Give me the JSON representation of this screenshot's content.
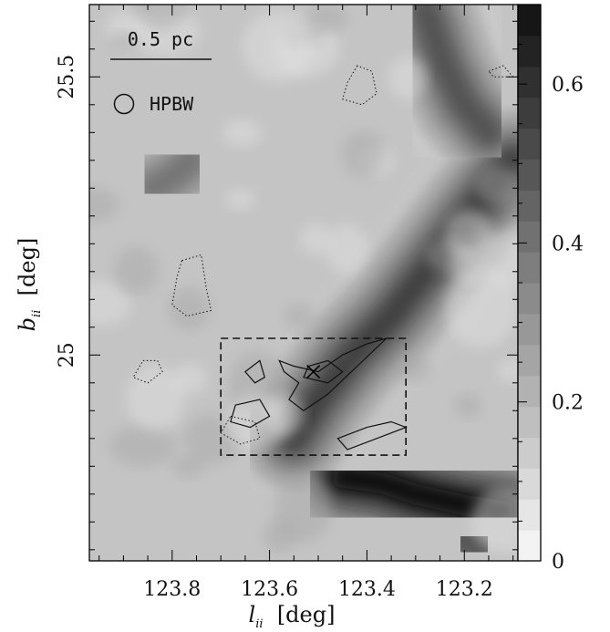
{
  "chart_data": {
    "type": "heatmap",
    "title": "",
    "xlabel": "l",
    "xlabel_sub": "ii",
    "xlabel_unit": "[deg]",
    "ylabel": "b",
    "ylabel_sub": "ii",
    "ylabel_unit": "[deg]",
    "xlim": [
      123.97,
      123.09
    ],
    "ylim": [
      24.63,
      25.63
    ],
    "x_ticks": [
      123.8,
      123.6,
      123.4,
      123.2
    ],
    "x_tick_labels": [
      "123.8",
      "123.6",
      "123.4",
      "123.2"
    ],
    "y_ticks": [
      25.0,
      25.5
    ],
    "y_tick_labels": [
      "25",
      "25.5"
    ],
    "colorbar": {
      "range": [
        0,
        0.7
      ],
      "ticks": [
        0,
        0.2,
        0.4,
        0.6
      ],
      "tick_labels": [
        "0",
        "0.2",
        "0.4",
        "0.6"
      ],
      "colormap": "grayscale-inverted"
    },
    "scale_bar": {
      "label": "0.5 pc"
    },
    "beam": {
      "label": "HPBW"
    },
    "box": {
      "x_range": [
        123.7,
        123.32
      ],
      "y_range": [
        25.03,
        24.82
      ],
      "style": "dashed"
    },
    "marker": {
      "symbol": "x",
      "x": 123.51,
      "y": 24.97
    },
    "dense_ridges": [
      {
        "points": [
          [
            123.1,
            25.35
          ],
          [
            123.2,
            25.24
          ],
          [
            123.27,
            25.16
          ],
          [
            123.35,
            25.07
          ],
          [
            123.43,
            25.0
          ],
          [
            123.5,
            24.92
          ],
          [
            123.55,
            24.85
          ]
        ],
        "peak": 0.55
      },
      {
        "points": [
          [
            123.45,
            24.78
          ],
          [
            123.37,
            24.77
          ],
          [
            123.3,
            24.75
          ],
          [
            123.2,
            24.73
          ],
          [
            123.12,
            24.72
          ]
        ],
        "peak": 0.7
      },
      {
        "points": [
          [
            123.28,
            25.62
          ],
          [
            123.24,
            25.52
          ],
          [
            123.2,
            25.45
          ],
          [
            123.15,
            25.4
          ]
        ],
        "peak": 0.5
      },
      {
        "points": [
          [
            123.76,
            25.35
          ],
          [
            123.8,
            25.32
          ],
          [
            123.84,
            25.3
          ]
        ],
        "peak": 0.4
      },
      {
        "points": [
          [
            123.2,
            24.67
          ],
          [
            123.16,
            24.65
          ]
        ],
        "peak": 0.5
      }
    ]
  }
}
